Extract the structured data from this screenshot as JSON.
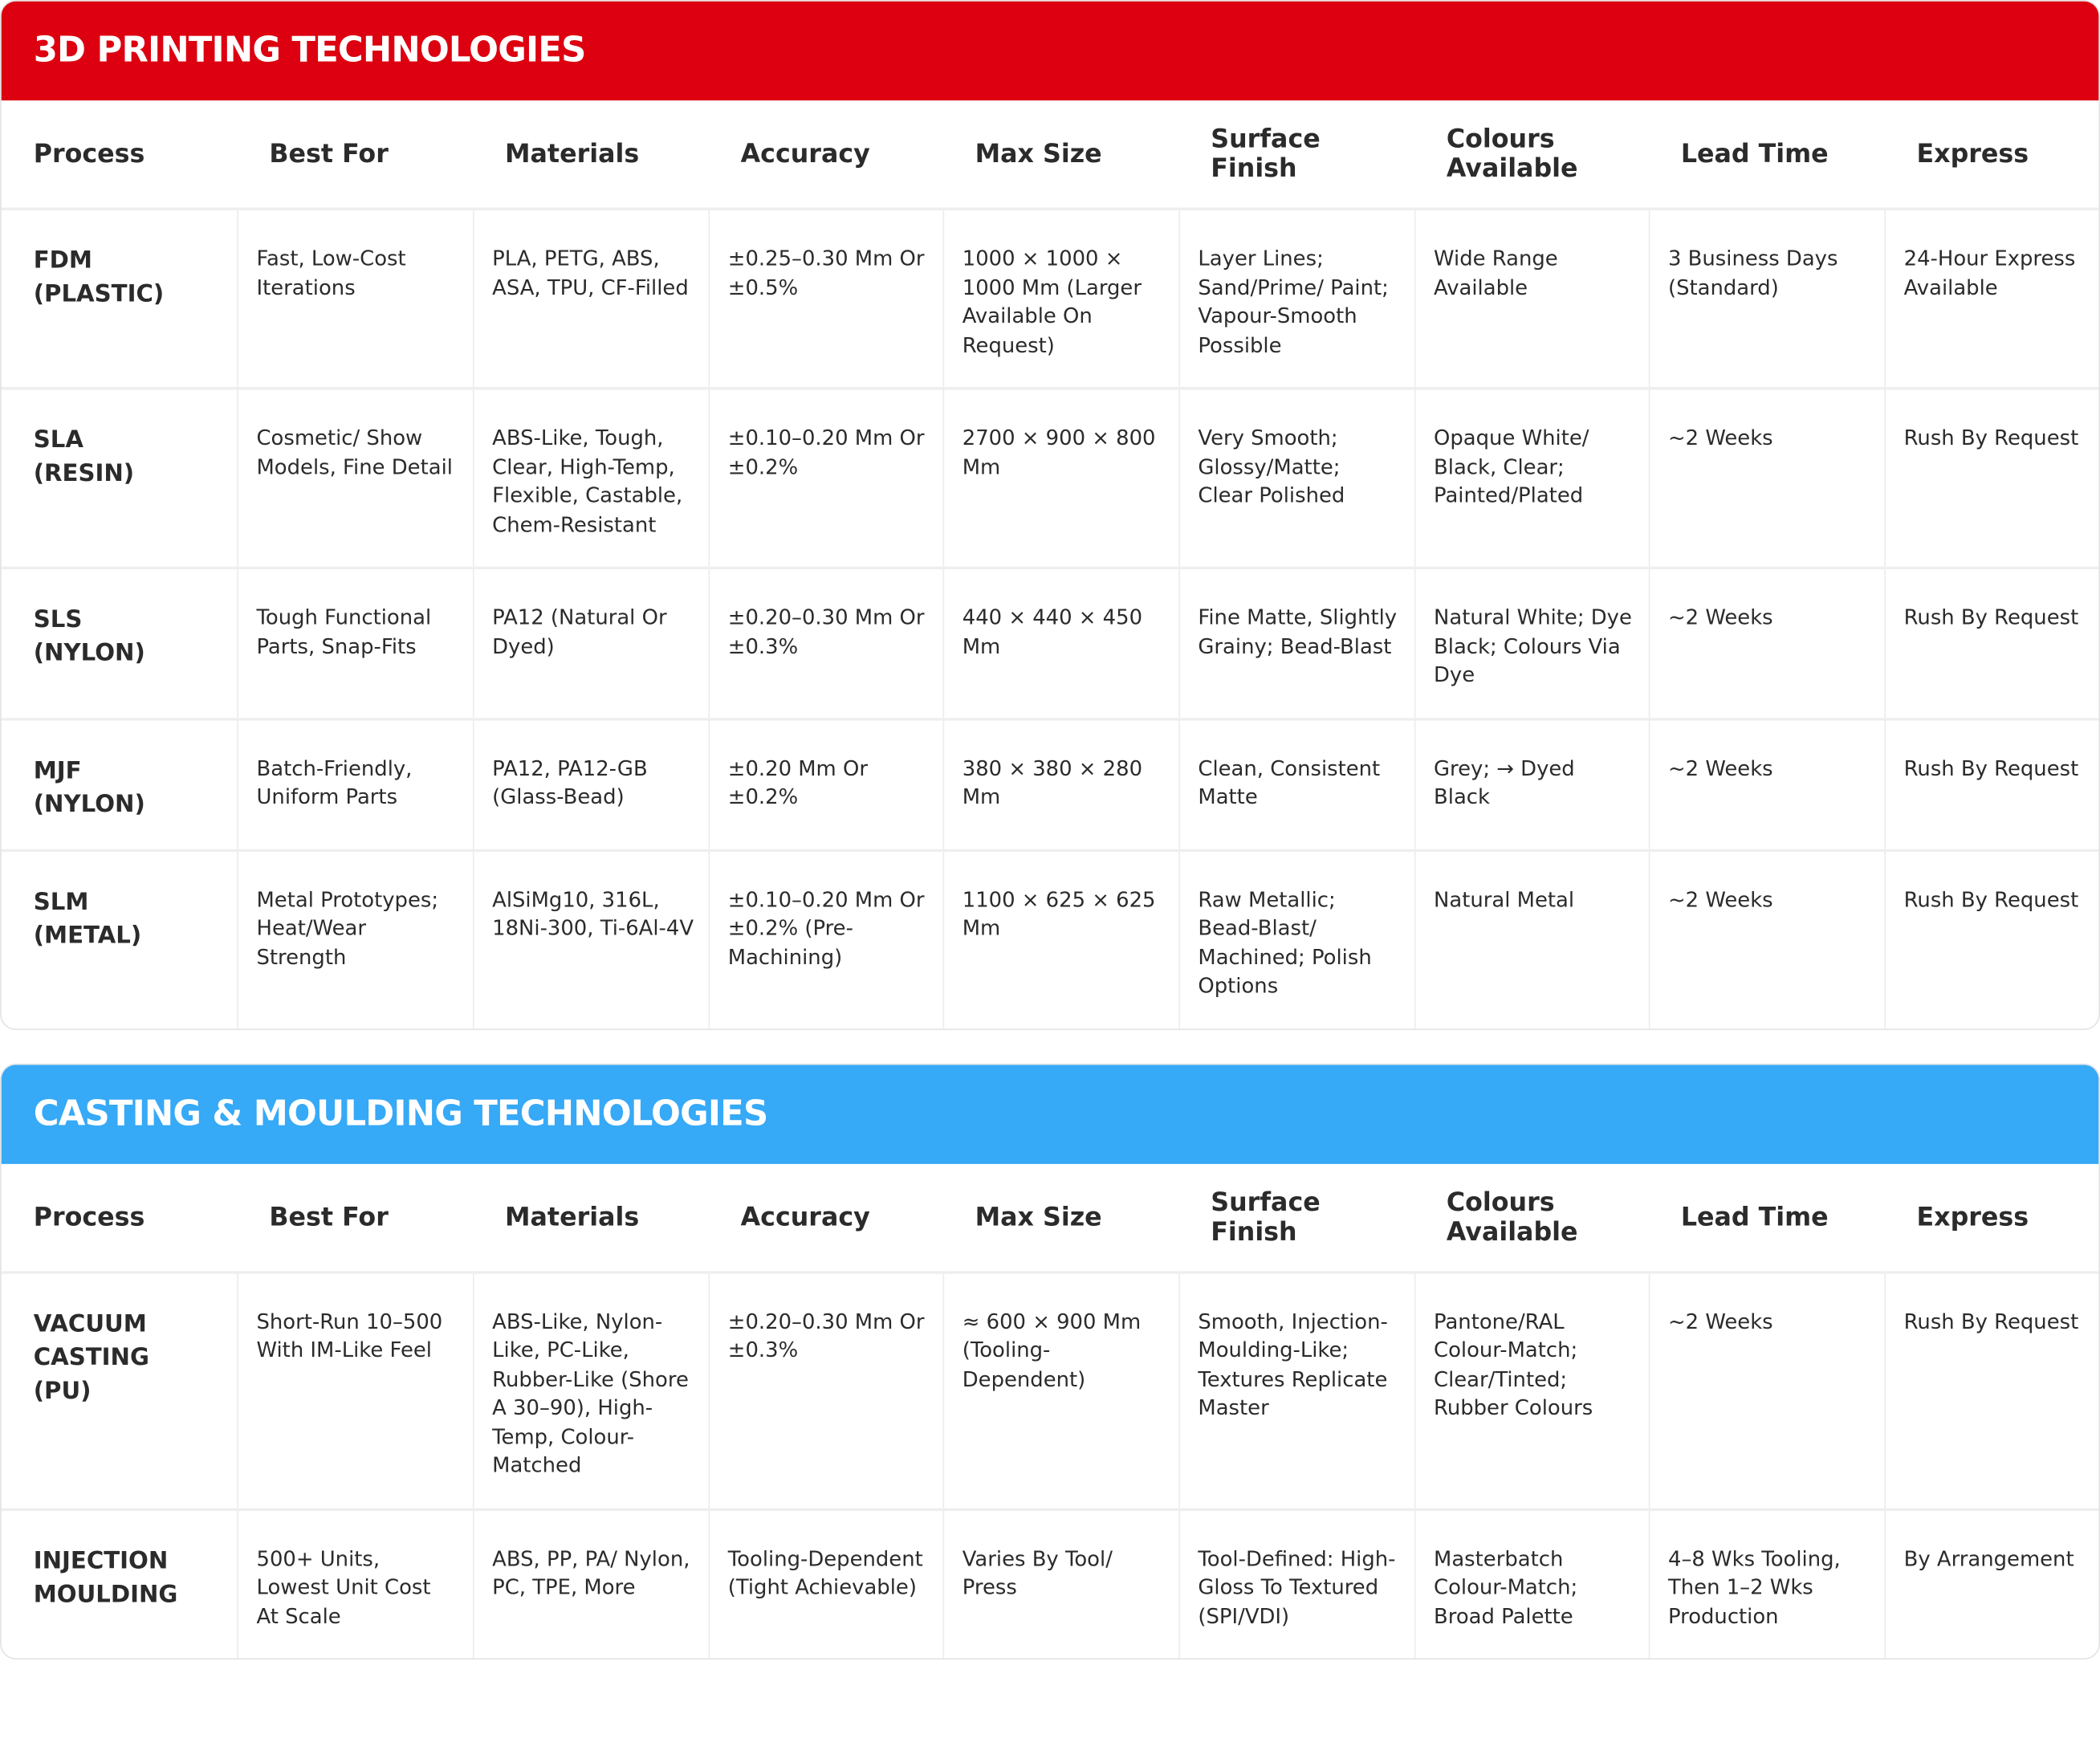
{
  "sections": [
    {
      "title": "3D PRINTING TECHNOLOGIES",
      "headers": [
        "Process",
        "Best For",
        "Materials",
        "Accuracy",
        "Max Size",
        "Surface Finish",
        "Colours Available",
        "Lead Time",
        "Express"
      ],
      "rows": [
        [
          "FDM (PLASTIC)",
          "Fast, Low-Cost Iterations",
          "PLA, PETG, ABS, ASA, TPU, CF-Filled",
          "±0.25–0.30 Mm Or ±0.5%",
          "1000 × 1000 × 1000 Mm (Larger Available On Request)",
          "Layer Lines; Sand/Prime/ Paint; Vapour-Smooth Possible",
          "Wide Range Available",
          "3 Business Days (Standard)",
          "24-Hour Express Available"
        ],
        [
          "SLA (RESIN)",
          "Cosmetic/ Show Models, Fine Detail",
          "ABS-Like, Tough, Clear, High-Temp, Flexible, Castable, Chem-Resistant",
          "±0.10–0.20 Mm Or ±0.2%",
          "2700 × 900 × 800 Mm",
          "Very Smooth; Glossy/Matte; Clear Polished",
          "Opaque White/ Black, Clear; Painted/Plated",
          "~2 Weeks",
          "Rush By Request"
        ],
        [
          "SLS (NYLON)",
          "Tough Functional Parts, Snap-Fits",
          "PA12 (Natural Or Dyed)",
          "±0.20–0.30 Mm Or ±0.3%",
          "440 × 440 × 450 Mm",
          "Fine Matte, Slightly Grainy; Bead-Blast",
          "Natural White; Dye Black; Colours Via Dye",
          "~2 Weeks",
          "Rush By Request"
        ],
        [
          "MJF (NYLON)",
          "Batch-Friendly, Uniform Parts",
          "PA12, PA12-GB (Glass-Bead)",
          "±0.20 Mm Or ±0.2%",
          "380 × 380 × 280 Mm",
          "Clean, Consistent Matte",
          "Grey; → Dyed Black",
          "~2 Weeks",
          "Rush By Request"
        ],
        [
          "SLM (METAL)",
          "Metal Prototypes; Heat/Wear Strength",
          "AlSiMg10, 316L, 18Ni-300, Ti-6Al-4V",
          "±0.10–0.20 Mm Or ±0.2% (Pre-Machining)",
          "1100 × 625 × 625 Mm",
          "Raw Metallic; Bead-Blast/ Machined; Polish Options",
          "Natural Metal",
          "~2 Weeks",
          "Rush By Request"
        ]
      ]
    },
    {
      "title": "CASTING & MOULDING TECHNOLOGIES",
      "headers": [
        "Process",
        "Best For",
        "Materials",
        "Accuracy",
        "Max Size",
        "Surface Finish",
        "Colours Available",
        "Lead Time",
        "Express"
      ],
      "rows": [
        [
          "VACUUM CASTING (PU)",
          "Short-Run 10–500 With IM-Like Feel",
          "ABS-Like, Nylon-Like, PC-Like, Rubber-Like (Shore A 30–90), High-Temp, Colour-Matched",
          "±0.20–0.30 Mm Or ±0.3%",
          "≈ 600 × 900 Mm (Tooling-Dependent)",
          "Smooth, Injection-Moulding-Like; Textures Replicate Master",
          "Pantone/RAL Colour-Match; Clear/Tinted; Rubber Colours",
          "~2 Weeks",
          "Rush By Request"
        ],
        [
          "INJECTION MOULDING",
          "500+ Units, Lowest Unit Cost At Scale",
          "ABS, PP, PA/ Nylon, PC, TPE, More",
          "Tooling-Dependent (Tight Achievable)",
          "Varies By Tool/ Press",
          "Tool-Defined: High-Gloss To Textured (SPI/VDI)",
          "Masterbatch Colour-Match; Broad Palette",
          "4–8 Wks Tooling, Then 1–2 Wks Production",
          "By Arrangement"
        ]
      ]
    }
  ]
}
